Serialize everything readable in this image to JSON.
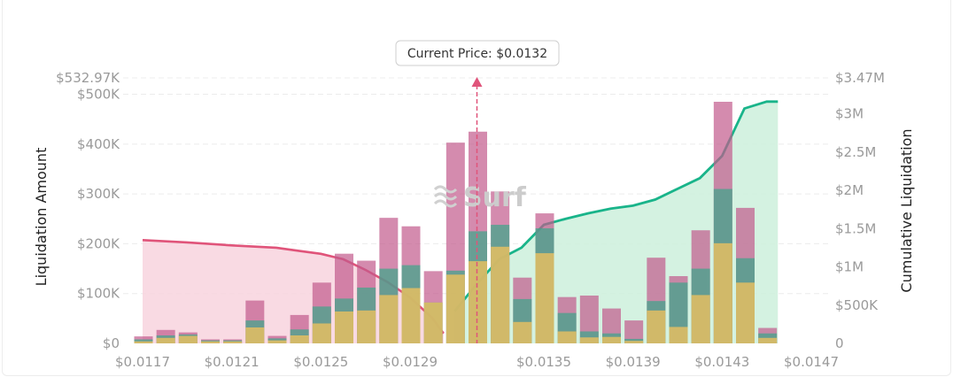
{
  "chart_data": {
    "type": "bar",
    "ylabel": "Liquidation Amount",
    "y2label": "Cumulative Liquidation",
    "ylim": [
      0,
      532970
    ],
    "y2lim": [
      0,
      3470000
    ],
    "y_ticks": [
      "$0",
      "$100K",
      "$200K",
      "$300K",
      "$400K",
      "$500K"
    ],
    "y_max_label": "$532.97K",
    "y2_ticks": [
      "0",
      "$500K",
      "$1M",
      "$1.5M",
      "$2M",
      "$2.5M",
      "$3M"
    ],
    "y2_max_label": "$3.47M",
    "x_tick_labels": [
      "$0.0117",
      "$0.0121",
      "$0.0125",
      "$0.0129",
      "$0.0135",
      "$0.0139",
      "$0.0143",
      "$0.0147"
    ],
    "current_price_label": "Current Price: $0.0132",
    "current_price": 0.0132,
    "watermark": "Surf",
    "colors": {
      "short_purple": "#c25a8c",
      "mid_teal": "#3fa58a",
      "low_yellow": "#efc15e",
      "cumulative_left_line": "#e0547a",
      "cumulative_left_fill": "#f8d3de",
      "cumulative_right_line": "#19b48a",
      "cumulative_right_fill": "#cdf0dc"
    },
    "bins": [
      {
        "price": 0.0117,
        "total": 14000,
        "mid": 8000,
        "low": 4000
      },
      {
        "price": 0.0118,
        "total": 27000,
        "mid": 16000,
        "low": 11000
      },
      {
        "price": 0.0119,
        "total": 22000,
        "mid": 18000,
        "low": 15000
      },
      {
        "price": 0.012,
        "total": 8000,
        "mid": 6000,
        "low": 4000
      },
      {
        "price": 0.0121,
        "total": 8000,
        "mid": 6000,
        "low": 4000
      },
      {
        "price": 0.0122,
        "total": 86000,
        "mid": 46000,
        "low": 32000
      },
      {
        "price": 0.0123,
        "total": 15000,
        "mid": 10000,
        "low": 6000
      },
      {
        "price": 0.0124,
        "total": 57000,
        "mid": 28000,
        "low": 16000
      },
      {
        "price": 0.0125,
        "total": 122000,
        "mid": 74000,
        "low": 40000
      },
      {
        "price": 0.0126,
        "total": 180000,
        "mid": 90000,
        "low": 64000
      },
      {
        "price": 0.0127,
        "total": 166000,
        "mid": 112000,
        "low": 66000
      },
      {
        "price": 0.0128,
        "total": 252000,
        "mid": 150000,
        "low": 97000
      },
      {
        "price": 0.0129,
        "total": 235000,
        "mid": 157000,
        "low": 111000
      },
      {
        "price": 0.013,
        "total": 145000,
        "mid": 82000,
        "low": 82000
      },
      {
        "price": 0.0131,
        "total": 403000,
        "mid": 146000,
        "low": 138000
      },
      {
        "price": 0.0132,
        "total": 425000,
        "mid": 225000,
        "low": 165000
      },
      {
        "price": 0.0133,
        "total": 305000,
        "mid": 238000,
        "low": 194000
      },
      {
        "price": 0.0134,
        "total": 132000,
        "mid": 89000,
        "low": 43000
      },
      {
        "price": 0.0135,
        "total": 261000,
        "mid": 231000,
        "low": 181000
      },
      {
        "price": 0.0136,
        "total": 93000,
        "mid": 61000,
        "low": 24000
      },
      {
        "price": 0.0137,
        "total": 96000,
        "mid": 24000,
        "low": 12000
      },
      {
        "price": 0.0138,
        "total": 70000,
        "mid": 20000,
        "low": 13000
      },
      {
        "price": 0.0139,
        "total": 46000,
        "mid": 9000,
        "low": 5000
      },
      {
        "price": 0.014,
        "total": 172000,
        "mid": 85000,
        "low": 66000
      },
      {
        "price": 0.0141,
        "total": 135000,
        "mid": 122000,
        "low": 33000
      },
      {
        "price": 0.0142,
        "total": 227000,
        "mid": 150000,
        "low": 97000
      },
      {
        "price": 0.0143,
        "total": 485000,
        "mid": 310000,
        "low": 201000
      },
      {
        "price": 0.0144,
        "total": 272000,
        "mid": 171000,
        "low": 122000
      },
      {
        "price": 0.0145,
        "total": 31000,
        "mid": 20000,
        "low": 11000
      }
    ],
    "cumulative_left": [
      [
        0.0117,
        1350000
      ],
      [
        0.0119,
        1320000
      ],
      [
        0.0121,
        1280000
      ],
      [
        0.0123,
        1250000
      ],
      [
        0.0124,
        1210000
      ],
      [
        0.0125,
        1170000
      ],
      [
        0.0126,
        1100000
      ],
      [
        0.0127,
        960000
      ],
      [
        0.0128,
        800000
      ],
      [
        0.0129,
        600000
      ],
      [
        0.013,
        330000
      ],
      [
        0.01305,
        130000
      ]
    ],
    "cumulative_right": [
      [
        0.0131,
        420000
      ],
      [
        0.0132,
        780000
      ],
      [
        0.0133,
        1100000
      ],
      [
        0.0134,
        1250000
      ],
      [
        0.0135,
        1550000
      ],
      [
        0.0136,
        1630000
      ],
      [
        0.0137,
        1700000
      ],
      [
        0.0138,
        1760000
      ],
      [
        0.0139,
        1800000
      ],
      [
        0.014,
        1880000
      ],
      [
        0.0141,
        2020000
      ],
      [
        0.0142,
        2160000
      ],
      [
        0.0143,
        2450000
      ],
      [
        0.0144,
        3070000
      ],
      [
        0.0145,
        3160000
      ],
      [
        0.01455,
        3160000
      ]
    ]
  }
}
